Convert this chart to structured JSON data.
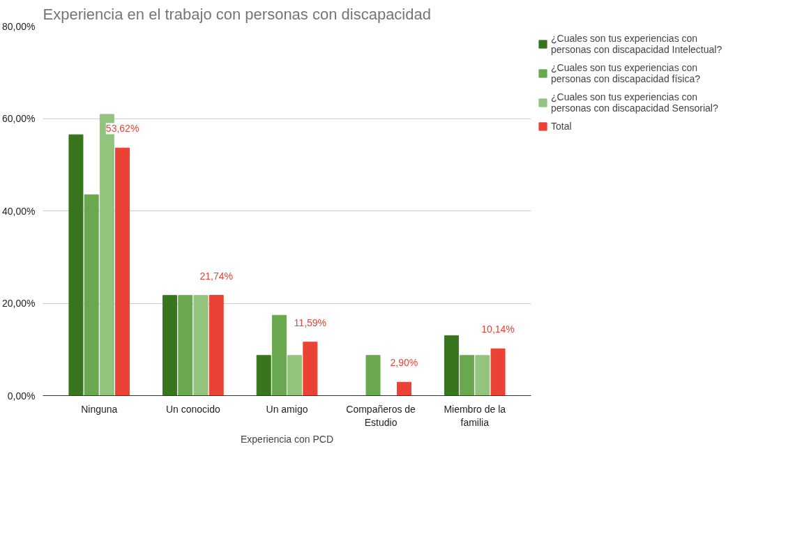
{
  "chart_data": {
    "type": "bar",
    "title": "Experiencia en el trabajo con personas con discapacidad",
    "xlabel": "Experiencia con PCD",
    "categories": [
      "Ninguna",
      "Un conocido",
      "Un amigo",
      "Compañeros de Estudio",
      "Miembro de la familia"
    ],
    "series": [
      {
        "name": "¿Cuales son tus experiencias con personas con discapacidad Intelectual?",
        "color": "#38761d",
        "values": [
          56.5,
          21.7,
          8.7,
          0,
          13.0
        ]
      },
      {
        "name": "¿Cuales son tus experiencias con personas con discapacidad física?",
        "color": "#6aa84f",
        "values": [
          43.5,
          21.7,
          17.4,
          8.7,
          8.7
        ]
      },
      {
        "name": "¿Cuales son tus experiencias con personas con discapacidad Sensorial?",
        "color": "#93c47d",
        "values": [
          60.9,
          21.7,
          8.7,
          0,
          8.7
        ]
      },
      {
        "name": "Total",
        "color": "#ea4335",
        "values": [
          53.62,
          21.74,
          11.59,
          2.9,
          10.14
        ],
        "value_labels": [
          "53,62%",
          "21,74%",
          "11,59%",
          "2,90%",
          "10,14%"
        ]
      }
    ],
    "ylim": [
      0,
      80
    ],
    "yticks": [
      {
        "value": 0,
        "label": "0,00%"
      },
      {
        "value": 20,
        "label": "20,00%"
      },
      {
        "value": 40,
        "label": "40,00%"
      },
      {
        "value": 60,
        "label": "60,00%"
      },
      {
        "value": 80,
        "label": "80,00%"
      }
    ],
    "grid": "y",
    "legend": "right"
  }
}
